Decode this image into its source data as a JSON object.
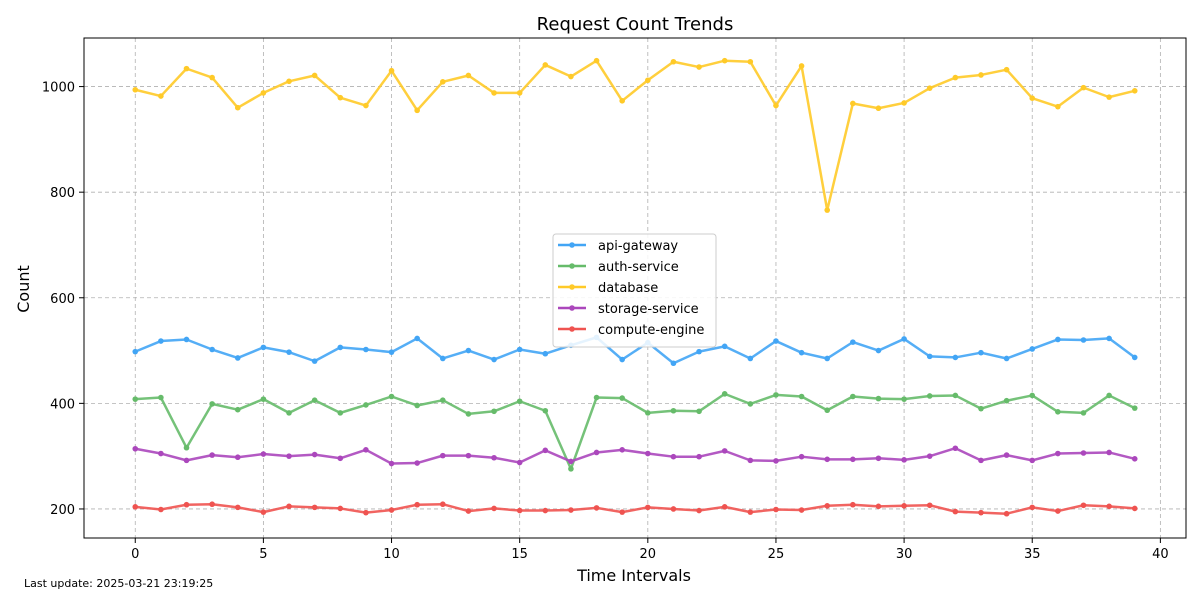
{
  "footer": {
    "last_update": "Last update: 2025-03-21 23:19:25"
  },
  "chart_data": {
    "type": "line",
    "title": "Request Count Trends",
    "xlabel": "Time Intervals",
    "ylabel": "Count",
    "xlim": [
      -2,
      41
    ],
    "ylim": [
      145,
      1092
    ],
    "x_ticks": [
      0,
      5,
      10,
      15,
      20,
      25,
      30,
      35,
      40
    ],
    "y_ticks": [
      200,
      400,
      600,
      800,
      1000
    ],
    "grid": true,
    "legend_position": "center",
    "x": [
      0,
      1,
      2,
      3,
      4,
      5,
      6,
      7,
      8,
      9,
      10,
      11,
      12,
      13,
      14,
      15,
      16,
      17,
      18,
      19,
      20,
      21,
      22,
      23,
      24,
      25,
      26,
      27,
      28,
      29,
      30,
      31,
      32,
      33,
      34,
      35,
      36,
      37,
      38,
      39
    ],
    "series": [
      {
        "name": "api-gateway",
        "color": "#42A5F5",
        "values": [
          498,
          518,
          521,
          502,
          486,
          506,
          497,
          480,
          506,
          502,
          497,
          523,
          485,
          500,
          483,
          502,
          494,
          510,
          525,
          483,
          515,
          476,
          498,
          508,
          485,
          518,
          496,
          485,
          516,
          500,
          522,
          489,
          487,
          496,
          485,
          503,
          521,
          520,
          523,
          487
        ]
      },
      {
        "name": "auth-service",
        "color": "#66BB6A",
        "values": [
          408,
          411,
          316,
          399,
          388,
          408,
          382,
          406,
          382,
          397,
          413,
          396,
          406,
          380,
          385,
          404,
          386,
          276,
          411,
          410,
          382,
          386,
          385,
          418,
          399,
          416,
          413,
          387,
          413,
          409,
          408,
          414,
          415,
          390,
          405,
          415,
          384,
          382,
          415,
          391
        ]
      },
      {
        "name": "database",
        "color": "#FFCA28",
        "values": [
          994,
          982,
          1034,
          1017,
          960,
          988,
          1010,
          1021,
          979,
          964,
          1030,
          955,
          1009,
          1021,
          988,
          988,
          1041,
          1019,
          1049,
          973,
          1012,
          1047,
          1037,
          1049,
          1047,
          964,
          1039,
          766,
          968,
          959,
          969,
          997,
          1017,
          1022,
          1032,
          978,
          962,
          998,
          980,
          992
        ]
      },
      {
        "name": "storage-service",
        "color": "#AB47BC",
        "values": [
          314,
          305,
          292,
          302,
          298,
          304,
          300,
          303,
          296,
          312,
          286,
          287,
          301,
          301,
          297,
          288,
          311,
          290,
          307,
          312,
          305,
          299,
          299,
          310,
          292,
          291,
          299,
          294,
          294,
          296,
          293,
          300,
          315,
          292,
          302,
          292,
          305,
          306,
          307,
          295
        ]
      },
      {
        "name": "compute-engine",
        "color": "#EF5350",
        "values": [
          204,
          199,
          208,
          209,
          203,
          194,
          205,
          203,
          201,
          193,
          198,
          208,
          209,
          196,
          201,
          197,
          197,
          198,
          202,
          194,
          203,
          200,
          197,
          204,
          194,
          199,
          198,
          206,
          208,
          205,
          206,
          207,
          195,
          193,
          191,
          203,
          196,
          207,
          205,
          201
        ]
      }
    ]
  }
}
